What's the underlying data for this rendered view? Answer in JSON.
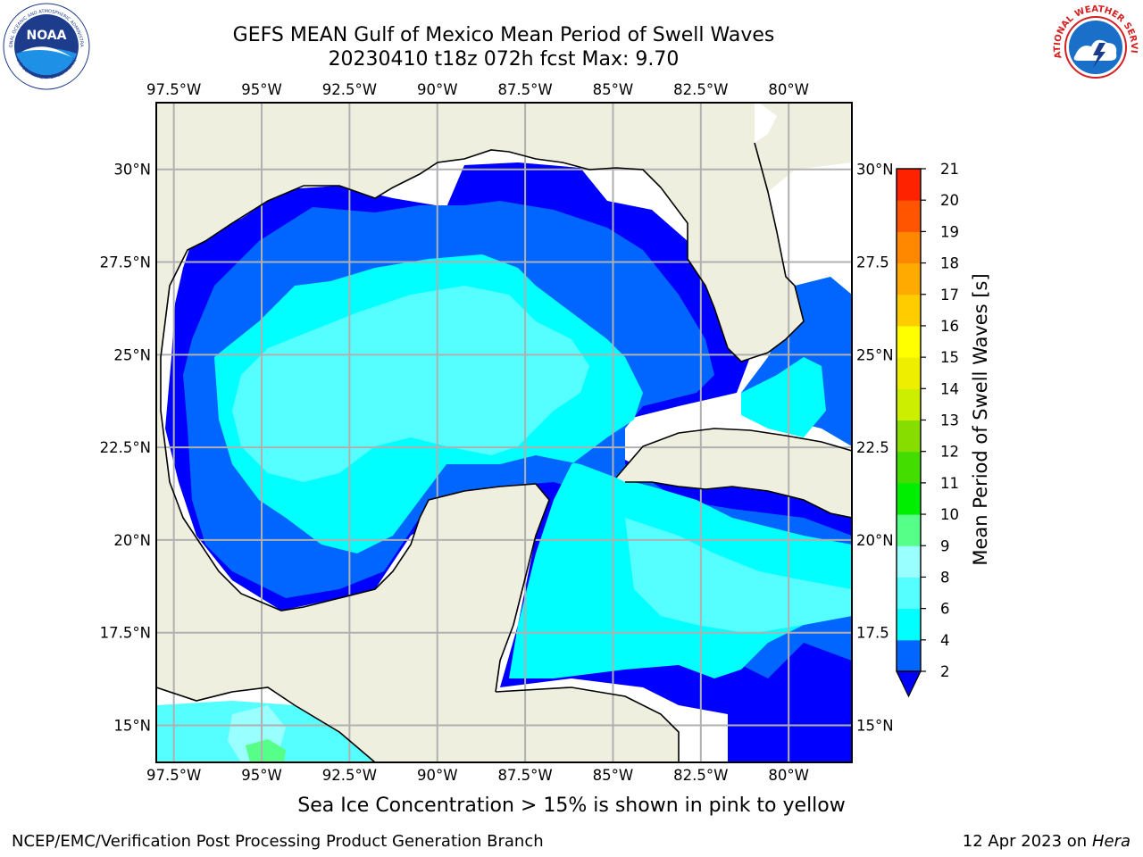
{
  "header": {
    "title_line1": "GEFS MEAN Gulf of Mexico Mean Period of Swell Waves",
    "title_line2": "20230410 t18z 072h fcst   Max: 9.70"
  },
  "logos": {
    "left_text_outer": "NATIONAL OCEANIC AND ATMOSPHERIC ADMINISTRATION",
    "left_text_center": "NOAA",
    "left_text_bottom": "U.S. DEPARTMENT OF COMMERCE",
    "right_text_outer": "NATIONAL WEATHER SERVICE"
  },
  "map": {
    "lon_labels": [
      "97.5°W",
      "95°W",
      "92.5°W",
      "90°W",
      "87.5°W",
      "85°W",
      "82.5°W",
      "80°W"
    ],
    "lon_values": [
      -97.5,
      -95,
      -92.5,
      -90,
      -87.5,
      -85,
      -82.5,
      -80
    ],
    "lat_labels_left": [
      "30°N",
      "27.5°N",
      "25°N",
      "22.5°N",
      "20°N",
      "17.5°N",
      "15°N"
    ],
    "lat_labels_right": [
      "30°N",
      "27.5",
      "25°N",
      "22.5",
      "20°N",
      "17.5",
      "15°N"
    ],
    "lat_values": [
      30,
      27.5,
      25,
      22.5,
      20,
      17.5,
      15
    ],
    "extent": {
      "lon_min": -98,
      "lon_max": -78.2,
      "lat_min": 14,
      "lat_max": 31.8
    },
    "colors": {
      "land": "#efefdf",
      "grid": "#b0b0b0",
      "coast": "#000000",
      "ocean_default": "#ffffff"
    }
  },
  "colorbar": {
    "label": "Mean Period of Swell Waves [s]",
    "tick_labels": [
      "2",
      "4",
      "6",
      "8",
      "9",
      "10",
      "11",
      "12",
      "13",
      "14",
      "15",
      "16",
      "17",
      "18",
      "19",
      "20",
      "21"
    ],
    "levels": [
      2,
      4,
      6,
      8,
      9,
      10,
      11,
      12,
      13,
      14,
      15,
      16,
      17,
      18,
      19,
      20,
      21
    ],
    "colors": [
      "#0000ff",
      "#0066ff",
      "#00ffff",
      "#55ffff",
      "#99ffff",
      "#55ff88",
      "#00ee00",
      "#44dd00",
      "#88dd00",
      "#ccee00",
      "#eeee00",
      "#ffff00",
      "#ffcc00",
      "#ffaa00",
      "#ff8800",
      "#ff5500",
      "#ff2200",
      "#ff0000"
    ],
    "extend_color": "#0000ff"
  },
  "chart_data": {
    "type": "heatmap",
    "title": "GEFS MEAN Gulf of Mexico Mean Period of Swell Waves",
    "subtitle": "20230410 t18z 072h fcst   Max: 9.70",
    "variable": "Mean Period of Swell Waves [s]",
    "max_value": 9.7,
    "xlim": [
      -98,
      -78.2
    ],
    "ylim": [
      14,
      31.8
    ],
    "levels": [
      2,
      4,
      6,
      8,
      9,
      10,
      11,
      12,
      13,
      14,
      15,
      16,
      17,
      18,
      19,
      20,
      21
    ]
  },
  "footer": {
    "note": "Sea Ice Concentration > 15% is shown in pink to yellow",
    "credit": "NCEP/EMC/Verification Post Processing Product Generation Branch",
    "date": "12 Apr 2023 on ",
    "machine": "Hera"
  }
}
